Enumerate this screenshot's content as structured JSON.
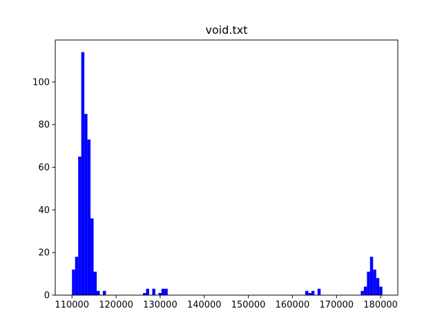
{
  "chart_data": {
    "type": "histogram",
    "title": "void.txt",
    "xlabel": "",
    "ylabel": "",
    "xlim": [
      106200,
      183900
    ],
    "ylim": [
      0,
      119.7
    ],
    "grid": false,
    "bar_color": "#0000ff",
    "bin_width": 700,
    "bins": [
      {
        "x0": 110000,
        "count": 12
      },
      {
        "x0": 110700,
        "count": 18
      },
      {
        "x0": 111400,
        "count": 65
      },
      {
        "x0": 112100,
        "count": 114
      },
      {
        "x0": 112800,
        "count": 85
      },
      {
        "x0": 113500,
        "count": 73
      },
      {
        "x0": 114200,
        "count": 36
      },
      {
        "x0": 114900,
        "count": 11
      },
      {
        "x0": 115600,
        "count": 2
      },
      {
        "x0": 116300,
        "count": 0
      },
      {
        "x0": 117000,
        "count": 2
      },
      {
        "x0": 126100,
        "count": 1
      },
      {
        "x0": 126800,
        "count": 3
      },
      {
        "x0": 127500,
        "count": 0
      },
      {
        "x0": 128200,
        "count": 3
      },
      {
        "x0": 129600,
        "count": 1
      },
      {
        "x0": 130300,
        "count": 3
      },
      {
        "x0": 131000,
        "count": 3
      },
      {
        "x0": 162900,
        "count": 2
      },
      {
        "x0": 163600,
        "count": 1
      },
      {
        "x0": 164300,
        "count": 2
      },
      {
        "x0": 165700,
        "count": 3
      },
      {
        "x0": 175500,
        "count": 2
      },
      {
        "x0": 176200,
        "count": 4
      },
      {
        "x0": 176900,
        "count": 11
      },
      {
        "x0": 177600,
        "count": 18
      },
      {
        "x0": 178300,
        "count": 12
      },
      {
        "x0": 179000,
        "count": 8
      },
      {
        "x0": 179700,
        "count": 4
      }
    ],
    "x_ticks": [
      110000,
      120000,
      130000,
      140000,
      150000,
      160000,
      170000,
      180000
    ],
    "x_tick_labels": [
      "110000",
      "120000",
      "130000",
      "140000",
      "150000",
      "160000",
      "170000",
      "180000"
    ],
    "y_ticks": [
      0,
      20,
      40,
      60,
      80,
      100
    ],
    "y_tick_labels": [
      "0",
      "20",
      "40",
      "60",
      "80",
      "100"
    ]
  }
}
